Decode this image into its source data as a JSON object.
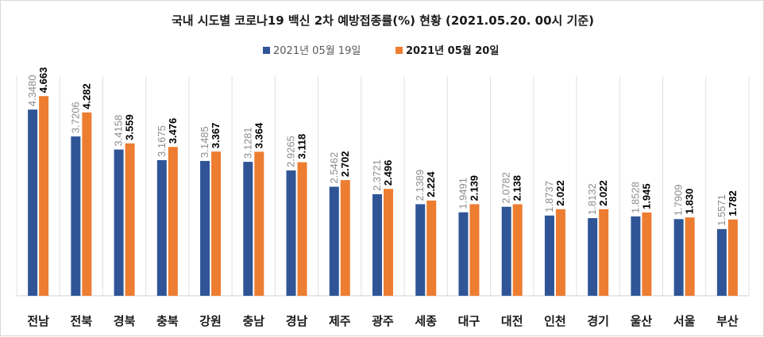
{
  "chart_data": {
    "type": "bar",
    "title": "국내 시도별 코로나19 백신 2차 예방접종률(%) 현황 (2021.05.20. 00시 기준)",
    "categories": [
      "전남",
      "전북",
      "경북",
      "충북",
      "강원",
      "충남",
      "경남",
      "제주",
      "광주",
      "세종",
      "대구",
      "대전",
      "인천",
      "경기",
      "울산",
      "서울",
      "부산"
    ],
    "series": [
      {
        "name": "2021년 05월 19일",
        "color": "#2f5597",
        "labels": [
          "4.3480",
          "3.7206",
          "3.4158",
          "3.1675",
          "3.1485",
          "3.1281",
          "2.9265",
          "2.5462",
          "2.3721",
          "2.1389",
          "1.9491",
          "2.0782",
          "1.8737",
          "1.8132",
          "1.8528",
          "1.7909",
          "1.5571"
        ],
        "values": [
          4.348,
          3.7206,
          3.4158,
          3.1675,
          3.1485,
          3.1281,
          2.9265,
          2.5462,
          2.3721,
          2.1389,
          1.9491,
          2.0782,
          1.8737,
          1.8132,
          1.8528,
          1.7909,
          1.5571
        ]
      },
      {
        "name": "2021년 05월 20일",
        "color": "#ed7d31",
        "labels": [
          "4.663",
          "4.282",
          "3.559",
          "3.476",
          "3.367",
          "3.364",
          "3.118",
          "2.702",
          "2.496",
          "2.224",
          "2.139",
          "2.138",
          "2.022",
          "2.022",
          "1.945",
          "1.830",
          "1.782"
        ],
        "values": [
          4.663,
          4.282,
          3.559,
          3.476,
          3.367,
          3.364,
          3.118,
          2.702,
          2.496,
          2.224,
          2.139,
          2.138,
          2.022,
          2.022,
          1.945,
          1.83,
          1.782
        ]
      }
    ],
    "xlabel": "",
    "ylabel": "",
    "ylim": [
      0,
      5
    ],
    "grid": true,
    "legend": "top-center"
  }
}
